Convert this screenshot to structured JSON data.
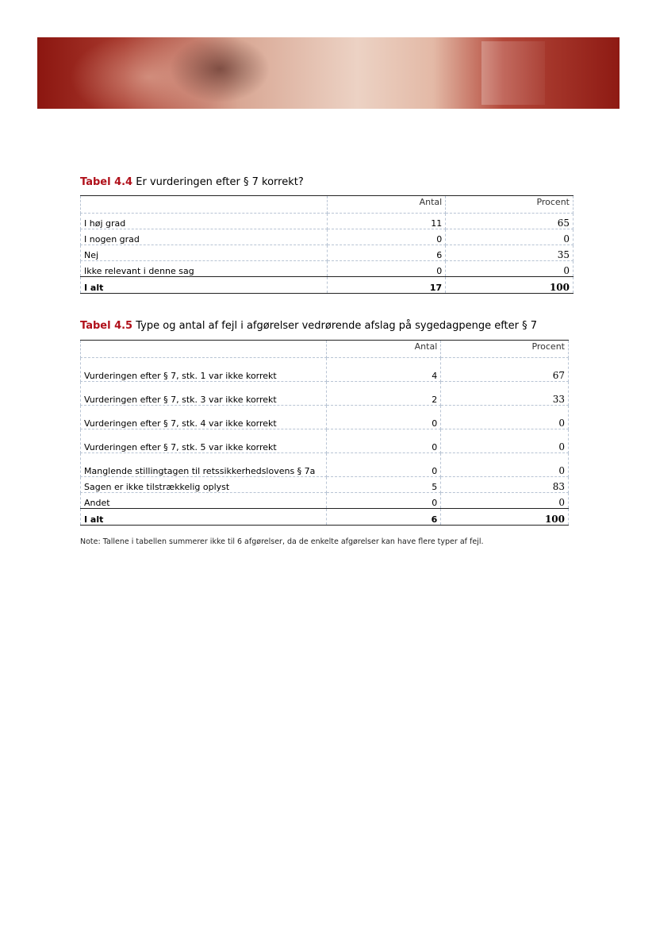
{
  "tables": [
    {
      "label": "Tabel 4.4",
      "title": "Er vurderingen efter § 7 korrekt?",
      "columns": [
        "",
        "Antal",
        "Procent"
      ],
      "rows": [
        [
          "I høj grad",
          "11",
          "65"
        ],
        [
          "I nogen grad",
          "0",
          "0"
        ],
        [
          "Nej",
          "6",
          "35"
        ],
        [
          "Ikke relevant i denne sag",
          "0",
          "0"
        ]
      ],
      "total": [
        "I alt",
        "17",
        "100"
      ]
    },
    {
      "label": "Tabel 4.5",
      "title": "Type og antal af fejl i afgørelser vedrørende afslag på sygedagpenge efter § 7",
      "columns": [
        "",
        "Antal",
        "Procent"
      ],
      "rows": [
        [
          "Vurderingen efter § 7, stk. 1 var ikke korrekt",
          "4",
          "67"
        ],
        [
          "Vurderingen efter § 7, stk. 3 var ikke korrekt",
          "2",
          "33"
        ],
        [
          "Vurderingen efter § 7, stk. 4 var ikke korrekt",
          "0",
          "0"
        ],
        [
          "Vurderingen efter § 7, stk. 5 var ikke korrekt",
          "0",
          "0"
        ],
        [
          "Manglende stillingtagen til retssikkerhedslovens § 7a",
          "0",
          "0"
        ],
        [
          "Sagen er ikke tilstrækkelig oplyst",
          "5",
          "83"
        ],
        [
          "Andet",
          "0",
          "0"
        ]
      ],
      "total": [
        "I alt",
        "6",
        "100"
      ]
    }
  ],
  "note": "Note: Tallene i tabellen summerer ikke til 6 afgørelser, da de enkelte afgørelser kan have flere typer af fejl.",
  "colors": {
    "accent": "#b0101a",
    "banner": "#8c1610"
  }
}
